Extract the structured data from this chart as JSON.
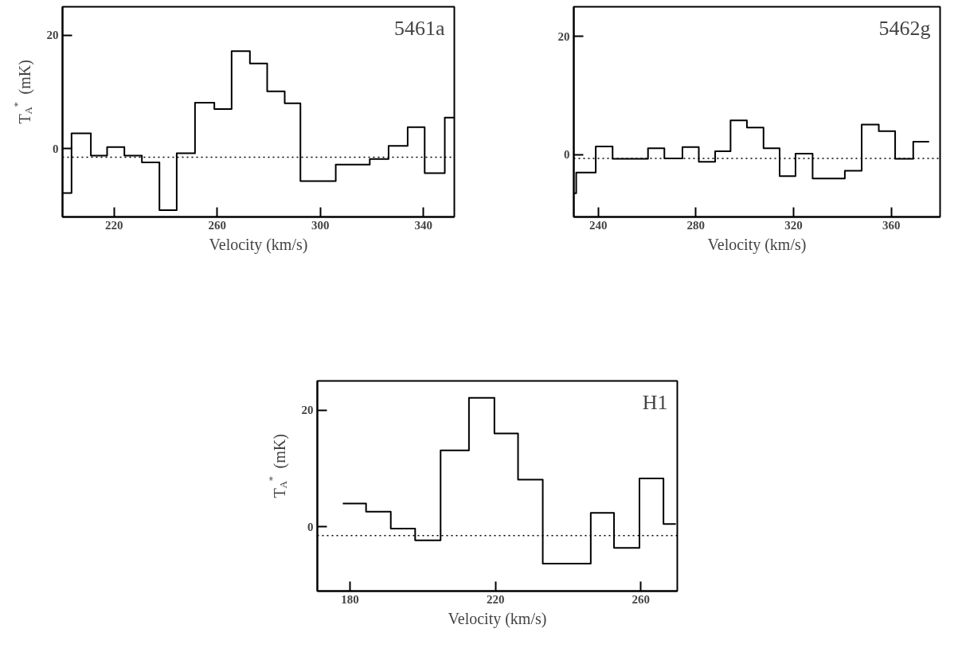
{
  "chart_data": [
    {
      "type": "step",
      "title": "5461a",
      "xlabel": "Velocity (km/s)",
      "ylabel": "T$_{A}$$^{*}$ (mK)",
      "x": [
        200,
        203.5,
        211,
        217.3,
        224,
        230.8,
        237.6,
        244.3,
        251.4,
        258.9,
        265.6,
        272.7,
        279.4,
        286.2,
        292.3,
        306,
        319.2,
        326.5,
        333.9,
        340.5,
        348.3,
        352
      ],
      "values": [
        -7.8,
        2.7,
        -1.2,
        0.3,
        -1.2,
        -2.4,
        -10.8,
        -0.8,
        8.1,
        7.0,
        17.2,
        15.0,
        10.1,
        8.0,
        -5.7,
        -2.8,
        -1.8,
        0.5,
        3.8,
        -4.3,
        5.5,
        5.5
      ],
      "color": "#000000",
      "xlim": [
        200,
        352
      ],
      "ylim": [
        -12,
        25
      ],
      "xticks": [
        220,
        260,
        300,
        340
      ],
      "yticks": [
        0,
        20
      ],
      "grid": false,
      "ref_lines": [
        {
          "axis": "y",
          "value": -1.5,
          "line_style": "dotted",
          "color": "#000000"
        }
      ]
    },
    {
      "type": "step",
      "title": "5462g",
      "xlabel": "Velocity (km/s)",
      "x": [
        230.2,
        231,
        239,
        245.9,
        260.4,
        267.1,
        274.5,
        281.2,
        287.9,
        294.2,
        300.9,
        307.7,
        314.3,
        320.8,
        327.8,
        341,
        347.9,
        354.9,
        361.6,
        369,
        375.5
      ],
      "values": [
        -6.5,
        -3.0,
        1.4,
        -0.7,
        1.1,
        -0.6,
        1.3,
        -1.2,
        0.6,
        5.8,
        4.6,
        1.1,
        -3.6,
        0.2,
        -4.0,
        -2.7,
        5.1,
        4.0,
        -0.7,
        2.2,
        2.2
      ],
      "color": "#000000",
      "xlim": [
        230,
        380
      ],
      "ylim": [
        -10.5,
        25
      ],
      "xticks": [
        240,
        280,
        320,
        360
      ],
      "yticks": [
        0,
        20
      ],
      "grid": false,
      "ref_lines": [
        {
          "axis": "y",
          "value": -0.6,
          "line_style": "dotted",
          "color": "#000000"
        }
      ]
    },
    {
      "type": "step",
      "title": "H1",
      "xlabel": "Velocity (km/s)",
      "ylabel": "T$_{A}$$^{*}$ (mK)",
      "x": [
        178,
        184.4,
        191.2,
        197.9,
        204.9,
        212.7,
        219.7,
        226.2,
        233,
        246.2,
        252.6,
        259.6,
        266.2,
        269.6
      ],
      "values": [
        4.0,
        2.6,
        -0.3,
        -2.3,
        13.1,
        22.1,
        16.0,
        8.1,
        -6.3,
        2.4,
        -3.6,
        8.3,
        0.5,
        0.5
      ],
      "color": "#000000",
      "xlim": [
        171,
        270
      ],
      "ylim": [
        -11,
        25
      ],
      "xticks": [
        180,
        220,
        260
      ],
      "yticks": [
        0,
        20
      ],
      "grid": false,
      "ref_lines": [
        {
          "axis": "y",
          "value": -1.5,
          "line_style": "dotted",
          "color": "#000000"
        }
      ]
    }
  ]
}
